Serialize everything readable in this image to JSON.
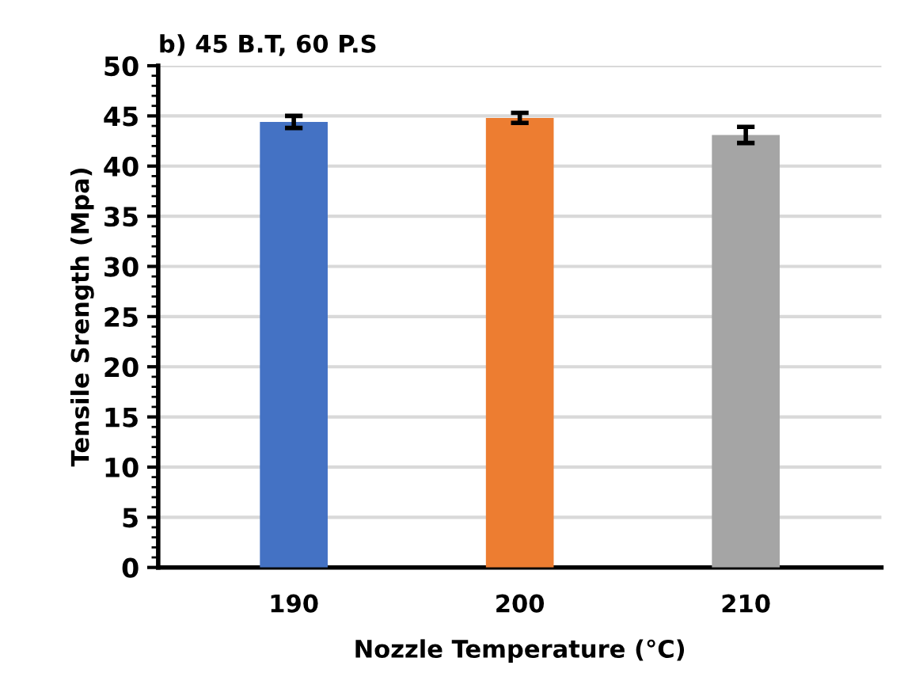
{
  "chart_data": {
    "type": "bar",
    "title": "b) 45 B.T, 60 P.S",
    "xlabel": "Nozzle Temperature (°C)",
    "ylabel": "Tensile Srength (Mpa)",
    "categories": [
      "190",
      "200",
      "210"
    ],
    "values": [
      44.4,
      44.8,
      43.1
    ],
    "colors": [
      "#4472c4",
      "#ed7d31",
      "#a5a5a5"
    ],
    "errors": [
      0.6,
      0.5,
      0.8
    ],
    "ylim": [
      0,
      50
    ],
    "yticks": [
      0,
      5,
      10,
      15,
      20,
      25,
      30,
      35,
      40,
      45,
      50
    ],
    "grid": "y"
  }
}
